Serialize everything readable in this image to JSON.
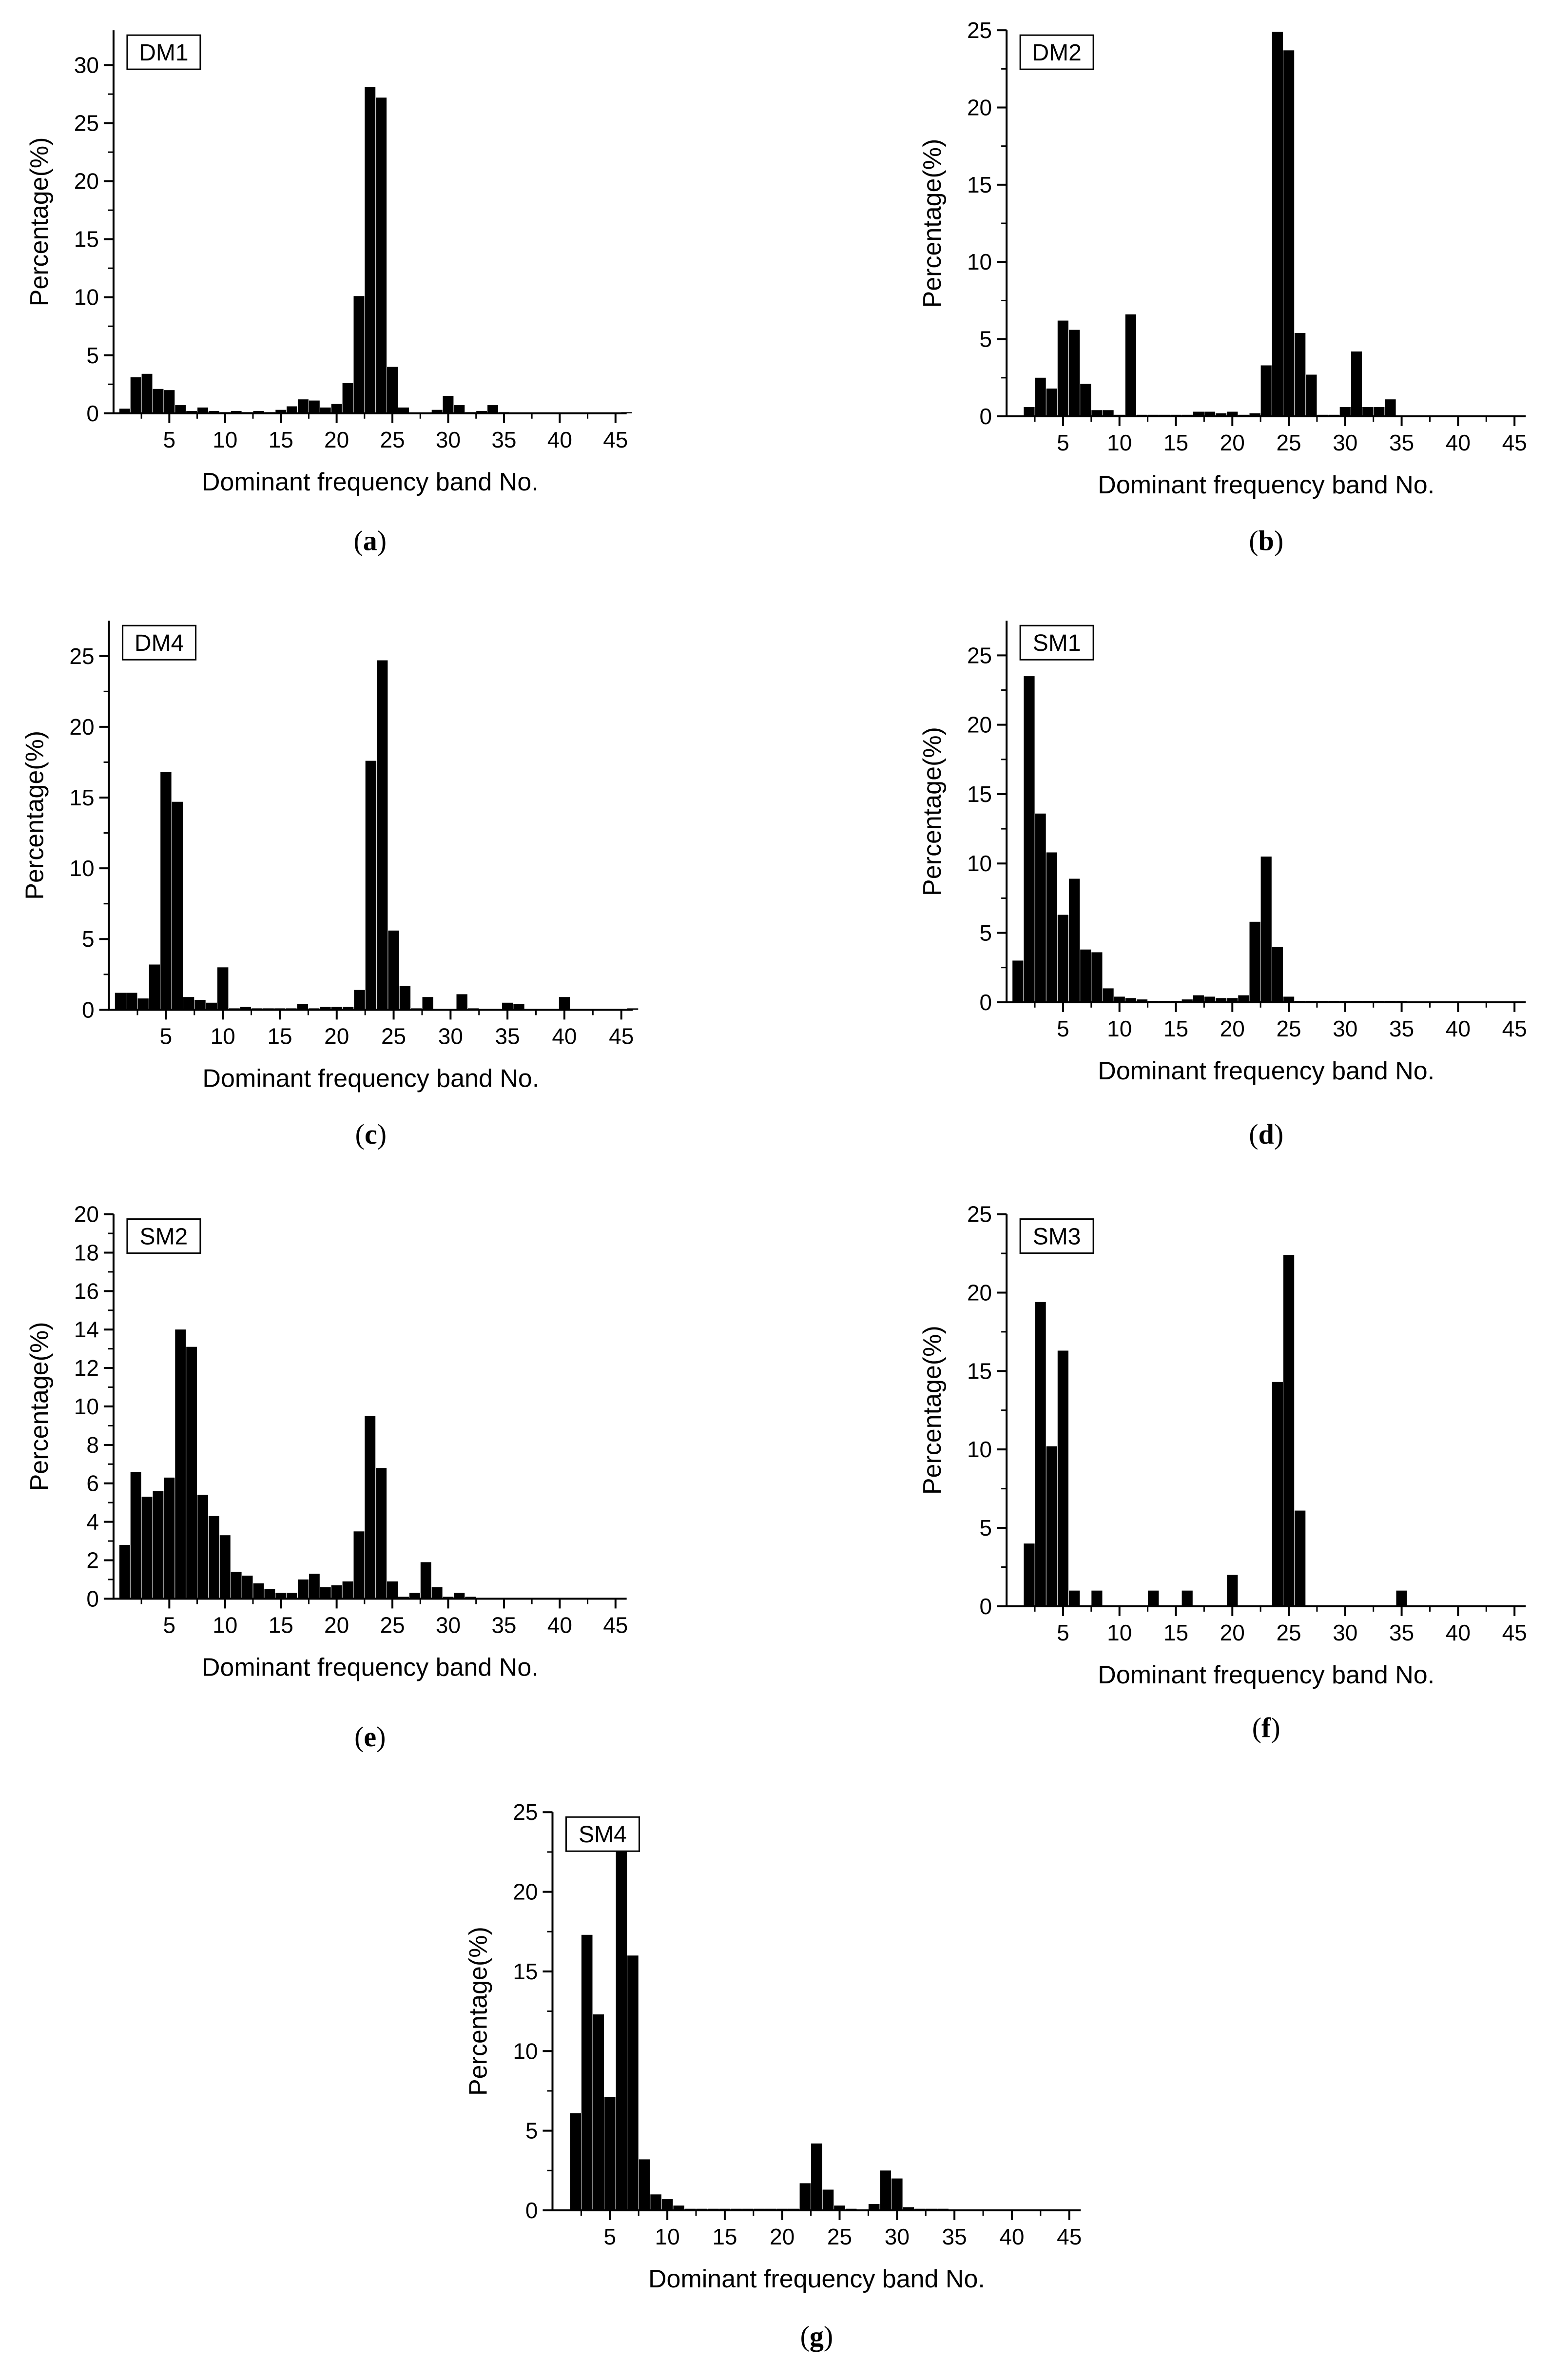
{
  "chart_data": [
    {
      "panel": "a",
      "caption_letter": "a",
      "label": "DM1",
      "type": "bar",
      "xlabel": "Dominant frequency band No.",
      "ylabel": "Percentage(%)",
      "xlim": [
        0,
        46
      ],
      "ylim": [
        0,
        33
      ],
      "yticks": [
        0,
        5,
        10,
        15,
        20,
        25,
        30
      ],
      "xticks": [
        5,
        10,
        15,
        20,
        25,
        30,
        35,
        40,
        45
      ],
      "categories": [
        1,
        2,
        3,
        4,
        5,
        6,
        7,
        8,
        9,
        10,
        11,
        12,
        13,
        14,
        15,
        16,
        17,
        18,
        19,
        20,
        21,
        22,
        23,
        24,
        25,
        26,
        27,
        28,
        29,
        30,
        31,
        32,
        33,
        34,
        35,
        36,
        37,
        38,
        39,
        40,
        41,
        42,
        43,
        44,
        45,
        46
      ],
      "values": [
        0.4,
        3.1,
        3.4,
        2.1,
        2.0,
        0.7,
        0.2,
        0.5,
        0.2,
        0.1,
        0.2,
        0.1,
        0.2,
        0.1,
        0.3,
        0.6,
        1.2,
        1.1,
        0.5,
        0.8,
        2.6,
        10.1,
        28.1,
        27.2,
        4.0,
        0.5,
        0.0,
        0.0,
        0.3,
        1.5,
        0.7,
        0.1,
        0.2,
        0.7,
        0.1,
        0,
        0,
        0,
        0,
        0,
        0,
        0,
        0,
        0,
        0,
        0.1
      ]
    },
    {
      "panel": "b",
      "caption_letter": "b",
      "label": "DM2",
      "type": "bar",
      "xlabel": "Dominant frequency band No.",
      "ylabel": "Percentage(%)",
      "xlim": [
        0,
        46
      ],
      "ylim": [
        0,
        25
      ],
      "yticks": [
        0,
        5,
        10,
        15,
        20,
        25
      ],
      "xticks": [
        5,
        10,
        15,
        20,
        25,
        30,
        35,
        40,
        45
      ],
      "categories": [
        1,
        2,
        3,
        4,
        5,
        6,
        7,
        8,
        9,
        10,
        11,
        12,
        13,
        14,
        15,
        16,
        17,
        18,
        19,
        20,
        21,
        22,
        23,
        24,
        25,
        26,
        27,
        28,
        29,
        30,
        31,
        32,
        33,
        34,
        35,
        36,
        37,
        38,
        39,
        40,
        41,
        42,
        43,
        44,
        45,
        46
      ],
      "values": [
        0,
        0.6,
        2.5,
        1.8,
        6.2,
        5.6,
        2.1,
        0.4,
        0.4,
        0.1,
        6.6,
        0.1,
        0.1,
        0.1,
        0.1,
        0.1,
        0.3,
        0.3,
        0.2,
        0.3,
        0.1,
        0.2,
        3.3,
        24.9,
        23.7,
        5.4,
        2.7,
        0.1,
        0.1,
        0.6,
        4.2,
        0.6,
        0.6,
        1.1,
        0,
        0,
        0,
        0,
        0,
        0,
        0,
        0,
        0,
        0,
        0,
        0
      ]
    },
    {
      "panel": "c",
      "caption_letter": "c",
      "label": "DM4",
      "type": "bar",
      "xlabel": "Dominant frequency band No.",
      "ylabel": "Percentage(%)",
      "xlim": [
        0,
        46
      ],
      "ylim": [
        0,
        27.5
      ],
      "yticks": [
        0,
        5,
        10,
        15,
        20,
        25
      ],
      "xticks": [
        5,
        10,
        15,
        20,
        25,
        30,
        35,
        40,
        45
      ],
      "categories": [
        1,
        2,
        3,
        4,
        5,
        6,
        7,
        8,
        9,
        10,
        11,
        12,
        13,
        14,
        15,
        16,
        17,
        18,
        19,
        20,
        21,
        22,
        23,
        24,
        25,
        26,
        27,
        28,
        29,
        30,
        31,
        32,
        33,
        34,
        35,
        36,
        37,
        38,
        39,
        40,
        41,
        42,
        43,
        44,
        45,
        46
      ],
      "values": [
        1.2,
        1.2,
        0.8,
        3.2,
        16.8,
        14.7,
        0.9,
        0.7,
        0.5,
        3.0,
        0.1,
        0.2,
        0.1,
        0.1,
        0.1,
        0.1,
        0.4,
        0.1,
        0.2,
        0.2,
        0.2,
        1.4,
        17.6,
        24.7,
        5.6,
        1.7,
        0.1,
        0.9,
        0,
        0,
        1.1,
        0.1,
        0,
        0,
        0.5,
        0.4,
        0,
        0,
        0,
        0.9,
        0,
        0,
        0,
        0,
        0,
        0.1
      ]
    },
    {
      "panel": "d",
      "caption_letter": "d",
      "label": "SM1",
      "type": "bar",
      "xlabel": "Dominant frequency band No.",
      "ylabel": "Percentage(%)",
      "xlim": [
        0,
        46
      ],
      "ylim": [
        0,
        27.5
      ],
      "yticks": [
        0,
        5,
        10,
        15,
        20,
        25
      ],
      "xticks": [
        5,
        10,
        15,
        20,
        25,
        30,
        35,
        40,
        45
      ],
      "categories": [
        1,
        2,
        3,
        4,
        5,
        6,
        7,
        8,
        9,
        10,
        11,
        12,
        13,
        14,
        15,
        16,
        17,
        18,
        19,
        20,
        21,
        22,
        23,
        24,
        25,
        26,
        27,
        28,
        29,
        30,
        31,
        32,
        33,
        34,
        35,
        36,
        37,
        38,
        39,
        40,
        41,
        42,
        43,
        44,
        45,
        46
      ],
      "values": [
        3.0,
        23.5,
        13.6,
        10.8,
        6.3,
        8.9,
        3.8,
        3.6,
        1.0,
        0.4,
        0.3,
        0.2,
        0.1,
        0.1,
        0.1,
        0.2,
        0.5,
        0.4,
        0.3,
        0.3,
        0.5,
        5.8,
        10.5,
        4.0,
        0.4,
        0.1,
        0.1,
        0.1,
        0.1,
        0.1,
        0.1,
        0.1,
        0.1,
        0.1,
        0.1,
        0,
        0,
        0,
        0,
        0,
        0,
        0,
        0,
        0,
        0,
        0
      ]
    },
    {
      "panel": "e",
      "caption_letter": "e",
      "label": "SM2",
      "type": "bar",
      "xlabel": "Dominant frequency band No.",
      "ylabel": "Percentage(%)",
      "xlim": [
        0,
        46
      ],
      "ylim": [
        0,
        20
      ],
      "yticks": [
        0,
        2,
        4,
        6,
        8,
        10,
        12,
        14,
        16,
        18,
        20
      ],
      "xticks": [
        5,
        10,
        15,
        20,
        25,
        30,
        35,
        40,
        45
      ],
      "categories": [
        1,
        2,
        3,
        4,
        5,
        6,
        7,
        8,
        9,
        10,
        11,
        12,
        13,
        14,
        15,
        16,
        17,
        18,
        19,
        20,
        21,
        22,
        23,
        24,
        25,
        26,
        27,
        28,
        29,
        30,
        31,
        32,
        33,
        34,
        35,
        36,
        37,
        38,
        39,
        40,
        41,
        42,
        43,
        44,
        45,
        46
      ],
      "values": [
        2.8,
        6.6,
        5.3,
        5.6,
        6.3,
        14.0,
        13.1,
        5.4,
        4.3,
        3.3,
        1.4,
        1.2,
        0.8,
        0.5,
        0.3,
        0.3,
        1.0,
        1.3,
        0.6,
        0.7,
        0.9,
        3.5,
        9.5,
        6.8,
        0.9,
        0.1,
        0.3,
        1.9,
        0.6,
        0.1,
        0.3,
        0.1,
        0,
        0,
        0,
        0,
        0,
        0,
        0,
        0,
        0,
        0,
        0,
        0,
        0,
        0
      ]
    },
    {
      "panel": "f",
      "caption_letter": "f",
      "label": "SM3",
      "type": "bar",
      "xlabel": "Dominant frequency band No.",
      "ylabel": "Percentage(%)",
      "xlim": [
        0,
        46
      ],
      "ylim": [
        0,
        25
      ],
      "yticks": [
        0,
        5,
        10,
        15,
        20,
        25
      ],
      "xticks": [
        5,
        10,
        15,
        20,
        25,
        30,
        35,
        40,
        45
      ],
      "categories": [
        1,
        2,
        3,
        4,
        5,
        6,
        7,
        8,
        9,
        10,
        11,
        12,
        13,
        14,
        15,
        16,
        17,
        18,
        19,
        20,
        21,
        22,
        23,
        24,
        25,
        26,
        27,
        28,
        29,
        30,
        31,
        32,
        33,
        34,
        35,
        36,
        37,
        38,
        39,
        40,
        41,
        42,
        43,
        44,
        45,
        46
      ],
      "values": [
        0,
        4.0,
        19.4,
        10.2,
        16.3,
        1.0,
        0,
        1.0,
        0,
        0,
        0,
        0,
        1.0,
        0,
        0,
        1.0,
        0,
        0,
        0,
        2.0,
        0,
        0,
        0,
        14.3,
        22.4,
        6.1,
        0,
        0,
        0,
        0,
        0,
        0,
        0,
        0,
        1.0,
        0,
        0,
        0,
        0,
        0,
        0,
        0,
        0,
        0,
        0,
        0
      ]
    },
    {
      "panel": "g",
      "caption_letter": "g",
      "label": "SM4",
      "type": "bar",
      "xlabel": "Dominant frequency band No.",
      "ylabel": "Percentage(%)",
      "xlim": [
        0,
        46
      ],
      "ylim": [
        0,
        25
      ],
      "yticks": [
        0,
        5,
        10,
        15,
        20,
        25
      ],
      "xticks": [
        5,
        10,
        15,
        20,
        25,
        30,
        35,
        40,
        45
      ],
      "categories": [
        1,
        2,
        3,
        4,
        5,
        6,
        7,
        8,
        9,
        10,
        11,
        12,
        13,
        14,
        15,
        16,
        17,
        18,
        19,
        20,
        21,
        22,
        23,
        24,
        25,
        26,
        27,
        28,
        29,
        30,
        31,
        32,
        33,
        34,
        35,
        36,
        37,
        38,
        39,
        40,
        41,
        42,
        43,
        44,
        45,
        46
      ],
      "values": [
        0,
        6.1,
        17.3,
        12.3,
        7.1,
        22.8,
        16.0,
        3.2,
        1.0,
        0.7,
        0.3,
        0.1,
        0.1,
        0.1,
        0.1,
        0.1,
        0.1,
        0.1,
        0.1,
        0.1,
        0.1,
        1.7,
        4.2,
        1.3,
        0.3,
        0.1,
        0,
        0.4,
        2.5,
        2.0,
        0.2,
        0.1,
        0.1,
        0.1,
        0,
        0,
        0,
        0,
        0,
        0,
        0,
        0,
        0,
        0,
        0,
        0
      ]
    }
  ]
}
